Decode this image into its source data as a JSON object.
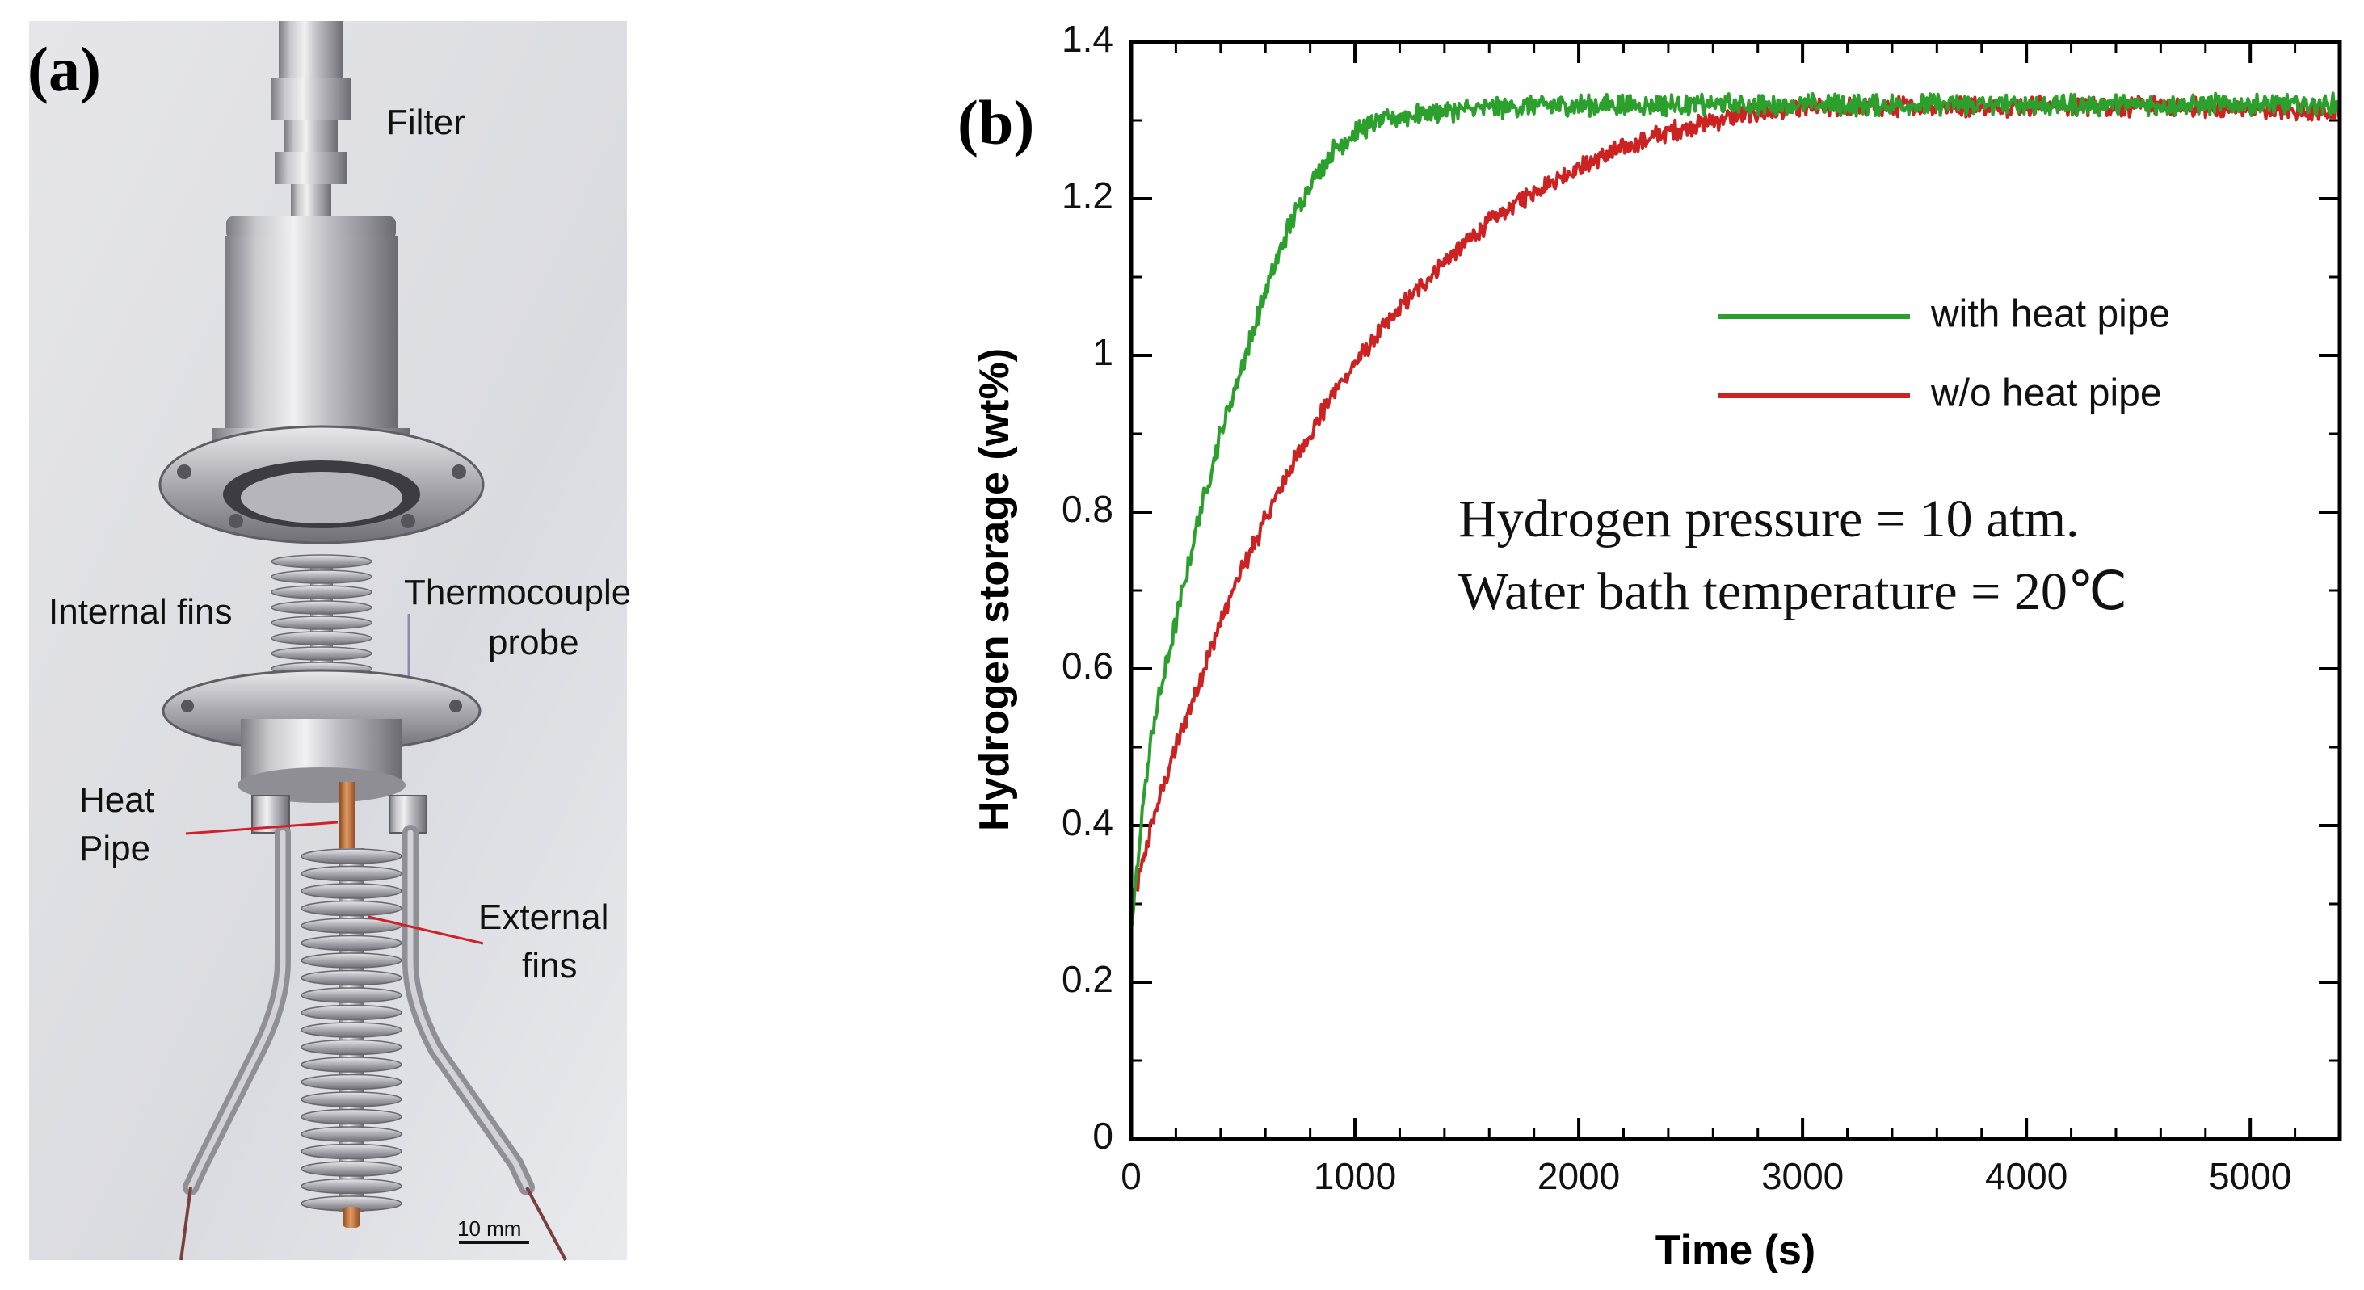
{
  "photo_panel": {
    "panel_label": "(a)",
    "labels": {
      "filter": "Filter",
      "internal_fins": "Internal fins",
      "thermocouple_line1": "Thermocouple",
      "thermocouple_line2": "probe",
      "heat_pipe_line1": "Heat",
      "heat_pipe_line2": "Pipe",
      "external_fins_line1": "External",
      "external_fins_line2": "fins",
      "scale_bar": "10 mm"
    },
    "colors": {
      "steel": "#b9b9bd",
      "copper": "#c8743c",
      "background": "#dcdde2",
      "annotation_line": "#d0202a"
    }
  },
  "chart_panel": {
    "panel_label": "(b)",
    "annotation_line1": "Hydrogen pressure = 10 atm.",
    "annotation_line2": "Water bath temperature = 20℃"
  },
  "chart_data": {
    "type": "line",
    "xlabel": "Time (s)",
    "ylabel": "Hydrogen storage (wt%)",
    "xlim": [
      0,
      5400
    ],
    "ylim": [
      0,
      1.4
    ],
    "x_ticks": [
      0,
      1000,
      2000,
      3000,
      4000,
      5000
    ],
    "x_tick_labels": [
      "0",
      "1000",
      "2000",
      "3000",
      "4000",
      "5000"
    ],
    "y_ticks": [
      0,
      0.2,
      0.4,
      0.6,
      0.8,
      1.0,
      1.2,
      1.4
    ],
    "y_tick_labels": [
      "0",
      "0.2",
      "0.4",
      "0.6",
      "0.8",
      "1",
      "1.2",
      "1.4"
    ],
    "legend_position": "upper-right",
    "series": [
      {
        "name": "with heat pipe",
        "color": "#2ca02c",
        "x": [
          0,
          50,
          100,
          200,
          300,
          400,
          500,
          600,
          700,
          800,
          900,
          1000,
          1100,
          1200,
          1400,
          1600,
          1800,
          2000,
          2500,
          3000,
          3500,
          4000,
          4500,
          5000,
          5400
        ],
        "y": [
          0.26,
          0.42,
          0.53,
          0.66,
          0.79,
          0.9,
          0.99,
          1.08,
          1.16,
          1.22,
          1.26,
          1.285,
          1.298,
          1.305,
          1.312,
          1.316,
          1.318,
          1.32,
          1.32,
          1.32,
          1.32,
          1.32,
          1.32,
          1.32,
          1.32
        ]
      },
      {
        "name": "w/o heat pipe",
        "color": "#cc2222",
        "x": [
          0,
          50,
          100,
          200,
          300,
          400,
          500,
          600,
          700,
          800,
          900,
          1000,
          1200,
          1400,
          1600,
          1800,
          2000,
          2200,
          2400,
          2600,
          2800,
          3000,
          3500,
          4000,
          4500,
          5000,
          5400
        ],
        "y": [
          0.29,
          0.35,
          0.41,
          0.5,
          0.58,
          0.66,
          0.73,
          0.79,
          0.85,
          0.9,
          0.95,
          0.99,
          1.06,
          1.12,
          1.17,
          1.21,
          1.24,
          1.265,
          1.285,
          1.3,
          1.31,
          1.315,
          1.318,
          1.318,
          1.318,
          1.315,
          1.31
        ]
      }
    ]
  }
}
